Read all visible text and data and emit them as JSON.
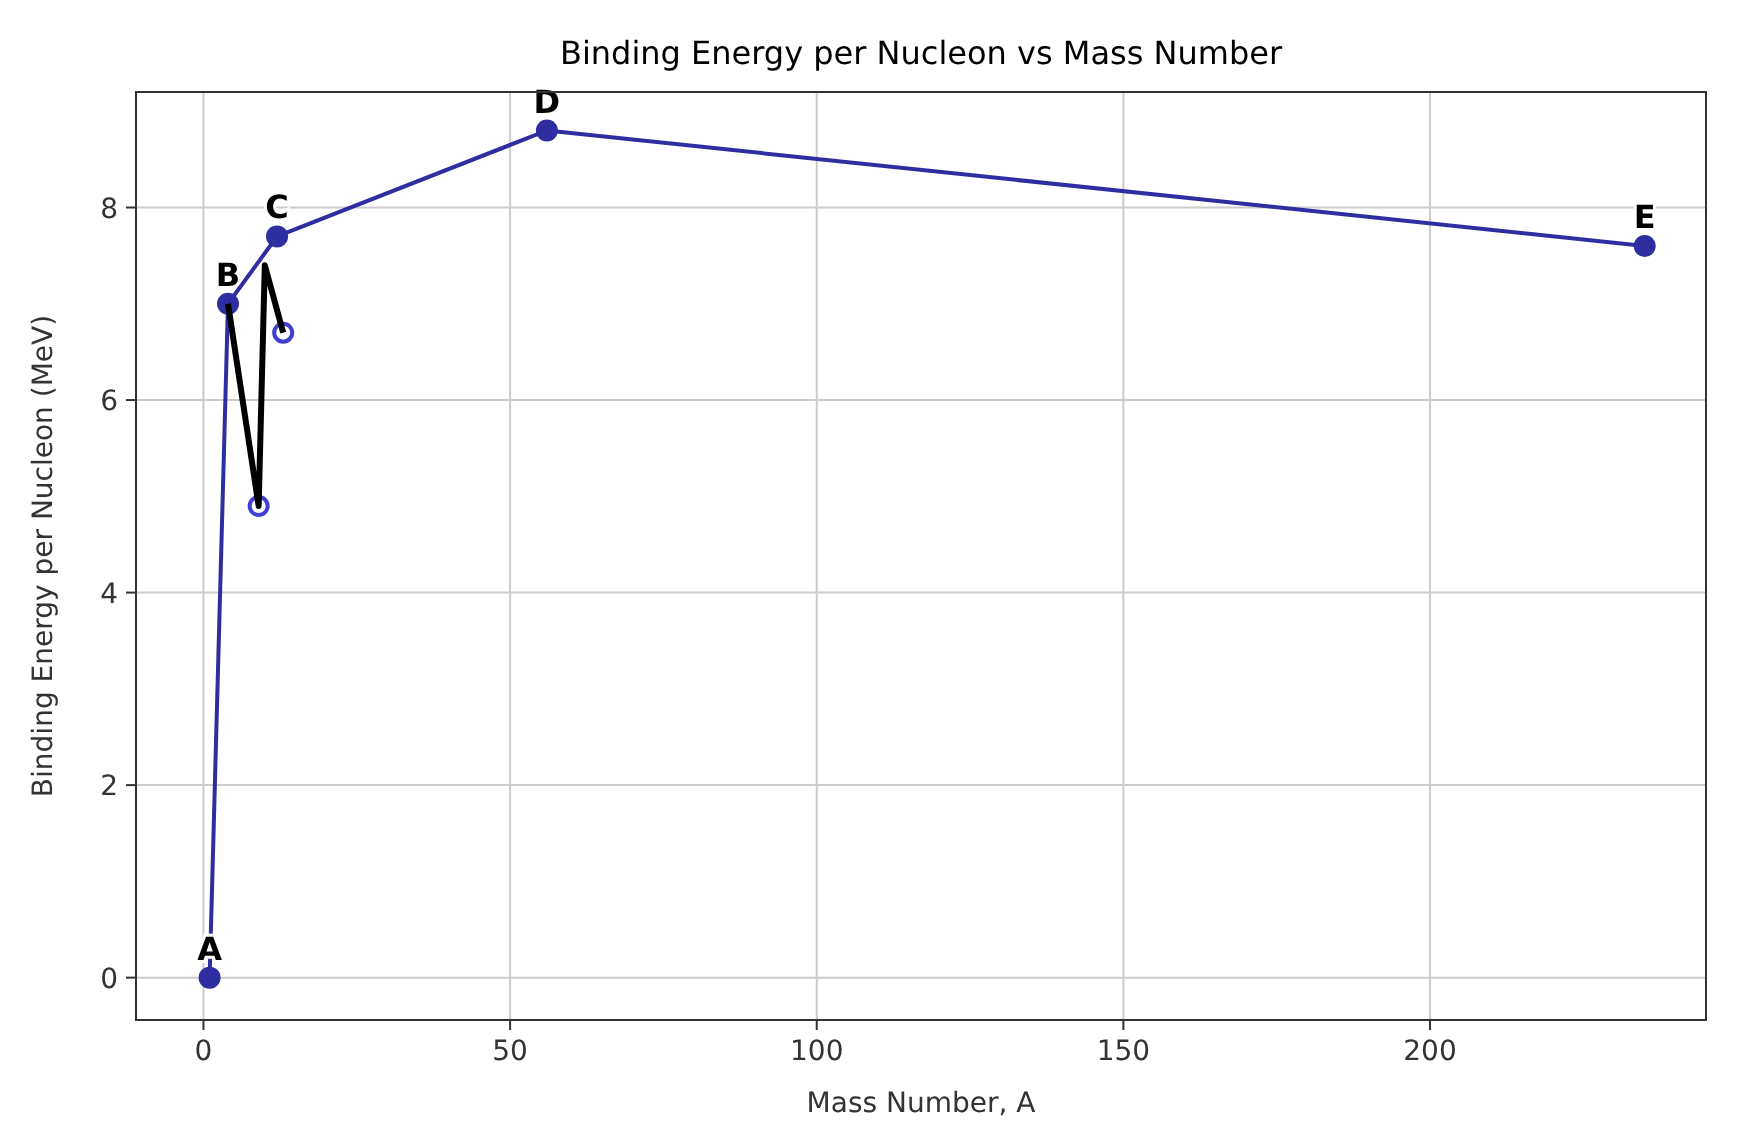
{
  "chart_data": {
    "type": "line",
    "title": "Binding Energy per Nucleon vs Mass Number",
    "xlabel": "Mass Number, A",
    "ylabel": "Binding Energy per Nucleon (MeV)",
    "xlim": [
      -11,
      245
    ],
    "ylim": [
      -0.44,
      9.2
    ],
    "xticks": [
      0,
      50,
      100,
      150,
      200
    ],
    "yticks": [
      0,
      2,
      4,
      6,
      8
    ],
    "grid": true,
    "marker": "circle",
    "series": [
      {
        "color": "#2e2ea0",
        "x": [
          1,
          4,
          12,
          56,
          235
        ],
        "values": [
          0,
          7.0,
          7.7,
          8.8,
          7.6
        ]
      },
      {
        "type": "scatter",
        "color": "#4040d0",
        "x": [
          9,
          13
        ],
        "values": [
          4.9,
          6.7
        ]
      },
      {
        "type": "line",
        "color": "#000000",
        "marker": "none",
        "x": [
          4,
          9,
          10,
          13
        ],
        "values": [
          7.0,
          4.9,
          7.4,
          6.7
        ]
      }
    ],
    "annotations": [
      {
        "text": "A",
        "x": 1,
        "y": 0
      },
      {
        "text": "B",
        "x": 4,
        "y": 7.0
      },
      {
        "text": "C",
        "x": 12,
        "y": 7.7
      },
      {
        "text": "D",
        "x": 56,
        "y": 8.8
      },
      {
        "text": "E",
        "x": 235,
        "y": 7.6
      }
    ]
  }
}
